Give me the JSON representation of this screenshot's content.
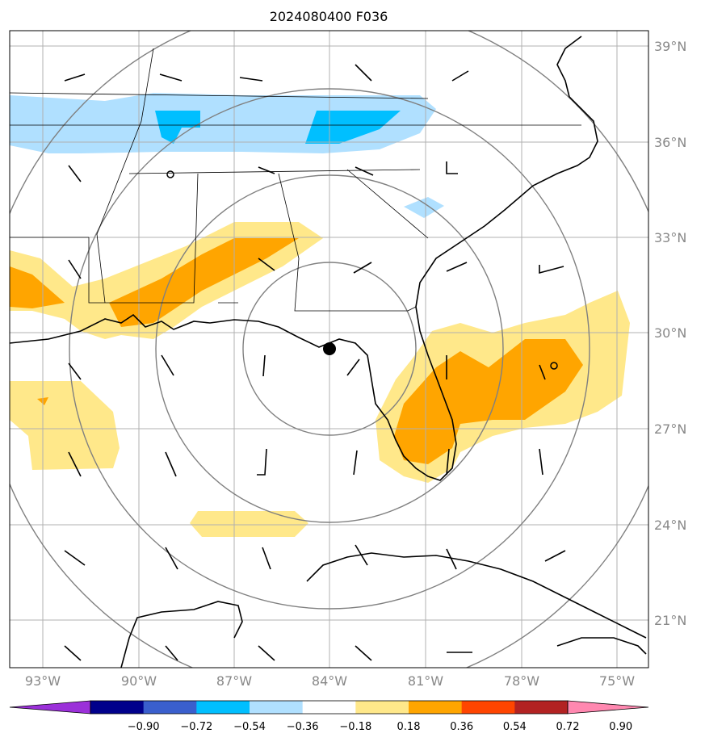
{
  "title": "2024080400 F036",
  "map": {
    "lon_range": [
      -94,
      -74.5
    ],
    "lat_range": [
      19.5,
      39.5
    ],
    "lat_labels": [
      "39°N",
      "36°N",
      "33°N",
      "30°N",
      "27°N",
      "24°N",
      "21°N"
    ],
    "lon_labels": [
      "93°W",
      "90°W",
      "87°W",
      "84°W",
      "81°W",
      "78°W",
      "75°W"
    ],
    "center_marker": {
      "lon": -84.0,
      "lat": 29.5
    },
    "open_circle_markers": [
      {
        "lon": -88.9,
        "lat": 35.0
      },
      {
        "lon": -77.0,
        "lat": 28.9
      }
    ],
    "range_rings": "concentric circles about the center marker",
    "colors": {
      "grid": "#b0b0b0",
      "rings": "#808080",
      "coast": "#000000"
    }
  },
  "colorbar": {
    "tick_labels": [
      "−0.90",
      "−0.72",
      "−0.54",
      "−0.36",
      "−0.18",
      "0.18",
      "0.36",
      "0.54",
      "0.72",
      "0.90"
    ],
    "colors": [
      "#9b30d9",
      "#00008b",
      "#3a5fcd",
      "#00bfff",
      "#b0e0ff",
      "#ffffff",
      "#ffe88a",
      "#ffa500",
      "#ff4500",
      "#b22222",
      "#ff88b0"
    ]
  }
}
